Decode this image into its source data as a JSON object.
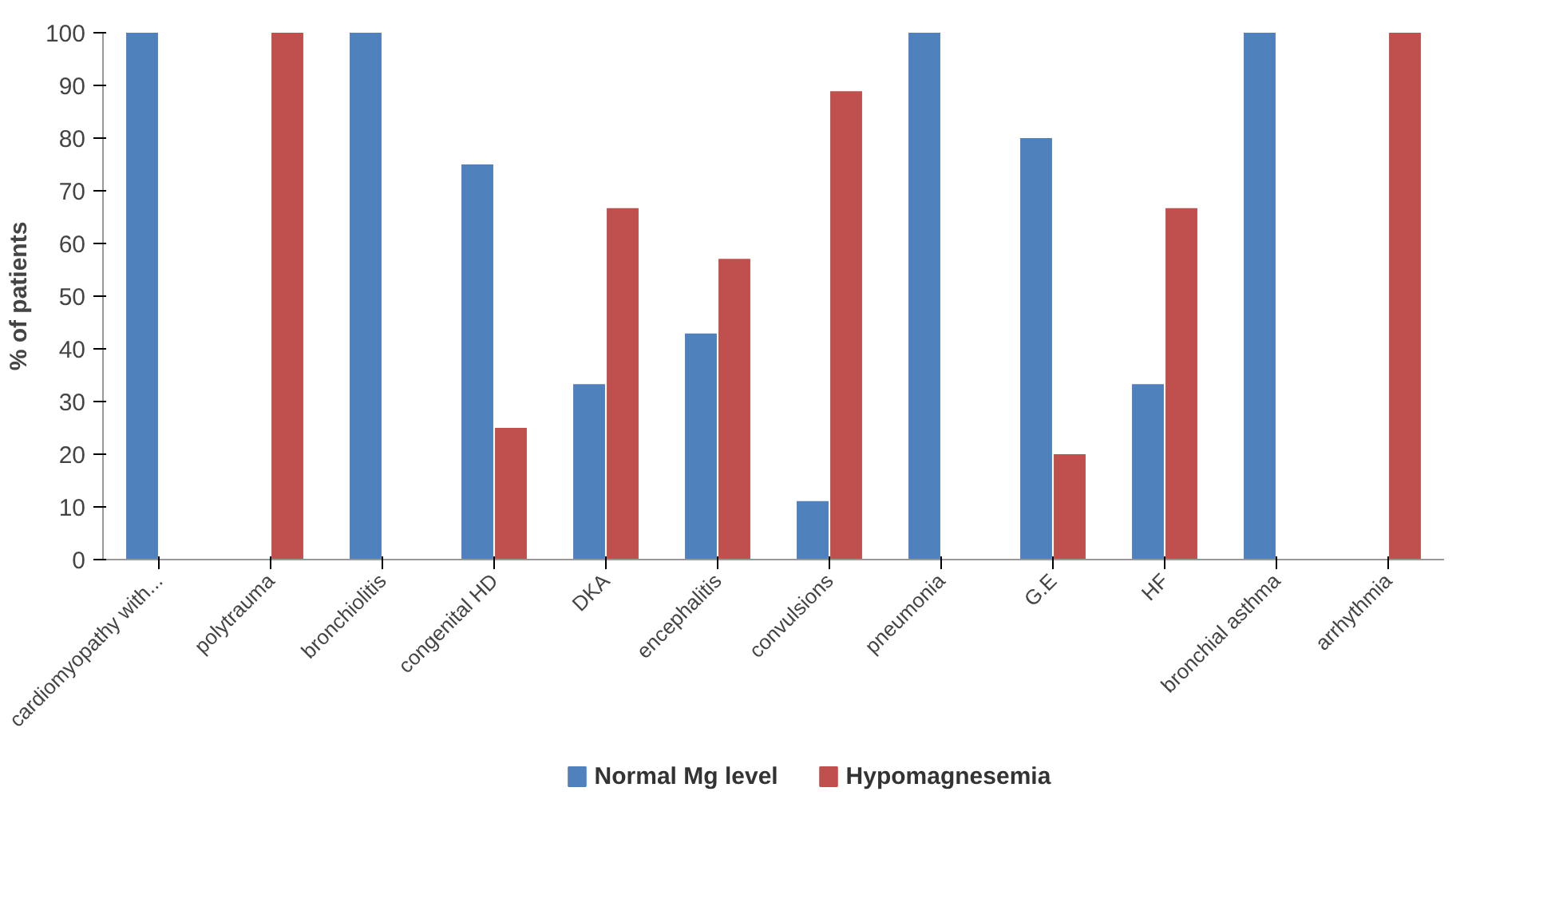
{
  "chart_data": {
    "type": "bar",
    "ylabel": "% of patients",
    "categories": [
      "cardiomyopathy with...",
      "polytrauma",
      "bronchiolitis",
      "congenital HD",
      "DKA",
      "encephalitis",
      "convulsions",
      "pneumonia",
      "G.E",
      "HF",
      "bronchial asthma",
      "arrhythmia"
    ],
    "series": [
      {
        "name": "Normal Mg level",
        "color": "#4f81bd",
        "values": [
          100,
          0,
          100,
          75,
          33.3,
          42.9,
          11.1,
          100,
          80,
          33.3,
          100,
          0
        ]
      },
      {
        "name": "Hypomagnesemia",
        "color": "#c0504d",
        "values": [
          0,
          100,
          0,
          25,
          66.7,
          57.1,
          88.9,
          0,
          20,
          66.7,
          0,
          100
        ]
      }
    ],
    "ylim": [
      0,
      100
    ],
    "yticks": [
      0,
      10,
      20,
      30,
      40,
      50,
      60,
      70,
      80,
      90,
      100
    ],
    "grid": false,
    "legend": "bottom"
  }
}
